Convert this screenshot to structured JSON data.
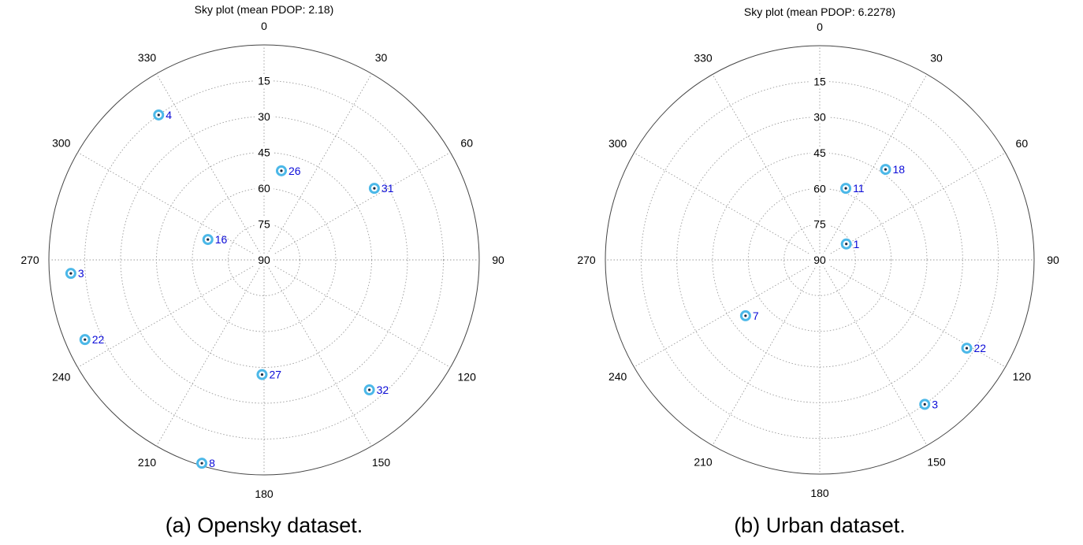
{
  "chart_data": [
    {
      "type": "scatter",
      "subtype": "polar-skyplot",
      "title": "Sky plot (mean PDOP: 2.18)",
      "caption": "(a) Opensky dataset.",
      "azimuth_ticks": [
        "0",
        "30",
        "60",
        "90",
        "120",
        "150",
        "180",
        "210",
        "240",
        "270",
        "300",
        "330"
      ],
      "elevation_ticks": [
        "15",
        "30",
        "45",
        "60",
        "75",
        "90"
      ],
      "elevation_range": [
        0,
        90
      ],
      "grid": true,
      "satellites": [
        {
          "prn": "4",
          "azimuth": 324,
          "elevation": 15
        },
        {
          "prn": "26",
          "azimuth": 11,
          "elevation": 52
        },
        {
          "prn": "31",
          "azimuth": 57,
          "elevation": 35
        },
        {
          "prn": "16",
          "azimuth": 290,
          "elevation": 65
        },
        {
          "prn": "3",
          "azimuth": 266,
          "elevation": 9
        },
        {
          "prn": "22",
          "azimuth": 246,
          "elevation": 8
        },
        {
          "prn": "32",
          "azimuth": 141,
          "elevation": 20
        },
        {
          "prn": "27",
          "azimuth": 181,
          "elevation": 42
        },
        {
          "prn": "8",
          "azimuth": 197,
          "elevation": 1
        }
      ]
    },
    {
      "type": "scatter",
      "subtype": "polar-skyplot",
      "title": "Sky plot (mean PDOP: 6.2278)",
      "caption": "(b) Urban dataset.",
      "azimuth_ticks": [
        "0",
        "30",
        "60",
        "90",
        "120",
        "150",
        "180",
        "210",
        "240",
        "270",
        "300",
        "330"
      ],
      "elevation_ticks": [
        "15",
        "30",
        "45",
        "60",
        "75",
        "90"
      ],
      "elevation_range": [
        0,
        90
      ],
      "grid": true,
      "satellites": [
        {
          "prn": "11",
          "azimuth": 20,
          "elevation": 58
        },
        {
          "prn": "18",
          "azimuth": 36,
          "elevation": 43
        },
        {
          "prn": "1",
          "azimuth": 59,
          "elevation": 77
        },
        {
          "prn": "22",
          "azimuth": 121,
          "elevation": 18
        },
        {
          "prn": "7",
          "azimuth": 233,
          "elevation": 51
        },
        {
          "prn": "3",
          "azimuth": 144,
          "elevation": 15
        }
      ]
    }
  ]
}
